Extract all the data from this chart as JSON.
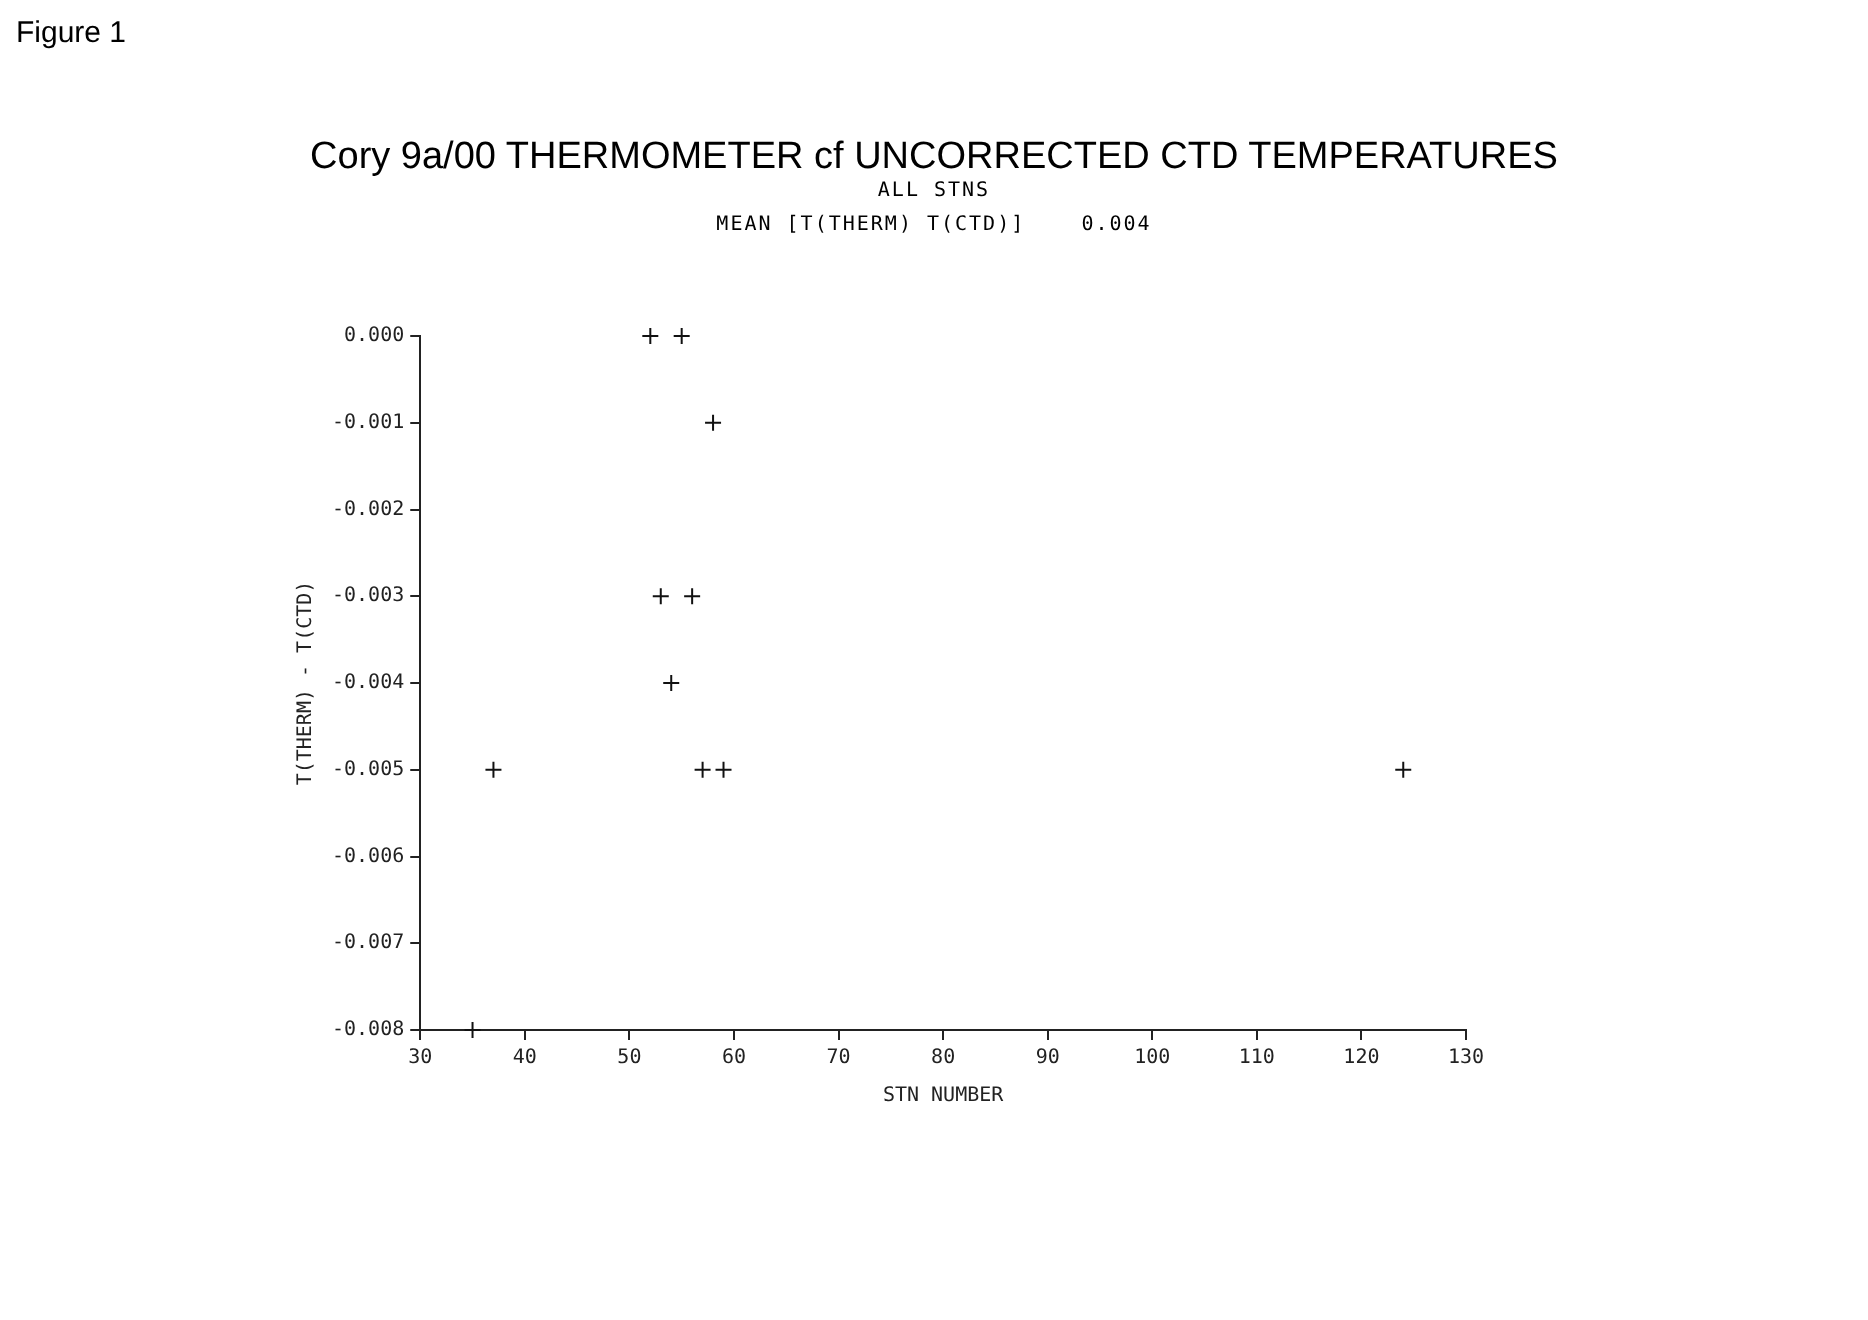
{
  "chart_data": {
    "type": "scatter",
    "title": "Cory 9a/00 THERMOMETER cf UNCORRECTED CTD TEMPERATURES",
    "subtitle": "ALL STNS",
    "xlabel": "STN NUMBER",
    "ylabel": "T(THERM) - T(CTD)",
    "annotations": [
      "Figure 1",
      "MEAN [T(THERM) T(CTD)]    0.004"
    ],
    "series": [
      {
        "color": "#111111",
        "x": [
          52,
          55,
          58,
          53,
          56,
          54,
          37,
          57,
          59,
          124,
          35
        ],
        "values": [
          0,
          0,
          -0.001,
          -0.003,
          -0.003,
          -0.004,
          -0.005,
          -0.005,
          -0.005,
          -0.005,
          -0.008
        ]
      }
    ],
    "xlim": [
      30,
      130
    ],
    "xticks": [
      30,
      40,
      50,
      60,
      70,
      80,
      90,
      100,
      110,
      120,
      130
    ],
    "ylim": [
      -0.008,
      0
    ],
    "yticks": [
      {
        "value": 0,
        "label": "0.000"
      },
      -0.001,
      -0.002,
      -0.003,
      -0.004,
      -0.005,
      -0.006,
      -0.007,
      -0.008
    ],
    "grid": false,
    "legend": false,
    "marker": "cross"
  }
}
